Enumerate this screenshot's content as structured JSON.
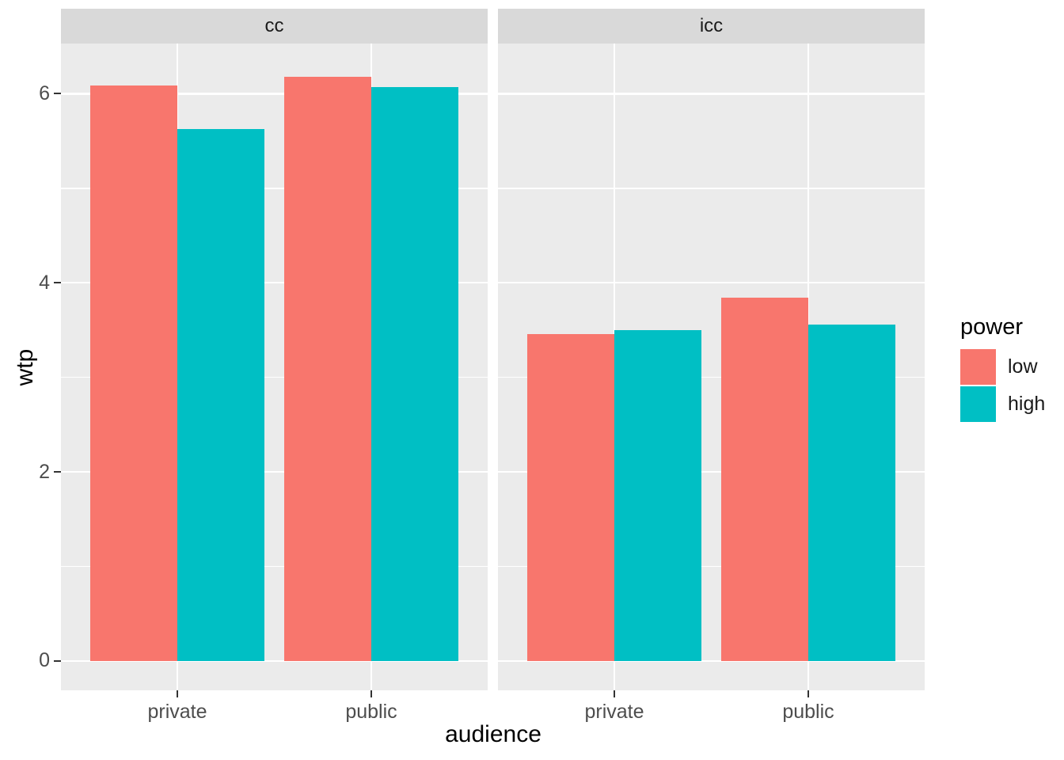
{
  "chart_data": {
    "type": "bar",
    "title": "",
    "xlabel": "audience",
    "ylabel": "wtp",
    "grid": true,
    "legend_position": "right",
    "y_ticks": [
      0,
      2,
      4,
      6
    ],
    "y_minor_ticks": [
      1,
      3,
      5
    ],
    "ylim": [
      -0.31,
      6.53
    ],
    "categories": [
      "private",
      "public"
    ],
    "facets": [
      {
        "label": "cc",
        "series": [
          {
            "name": "low",
            "values": [
              6.09,
              6.18
            ]
          },
          {
            "name": "high",
            "values": [
              5.63,
              6.07
            ]
          }
        ]
      },
      {
        "label": "icc",
        "series": [
          {
            "name": "low",
            "values": [
              3.46,
              3.84
            ]
          },
          {
            "name": "high",
            "values": [
              3.5,
              3.56
            ]
          }
        ]
      }
    ],
    "legend": {
      "title": "power",
      "entries": [
        {
          "label": "low",
          "color": "#F8766D"
        },
        {
          "label": "high",
          "color": "#00BFC4"
        }
      ]
    }
  },
  "colors": {
    "bar_low": "#F8766D",
    "bar_high": "#00BFC4",
    "panel_background": "#EBEBEB",
    "strip_background": "#D9D9D9",
    "gridline": "#FFFFFF",
    "axis_text": "#4D4D4D",
    "tick_mark": "#333333",
    "figure_background": "#FFFFFF"
  }
}
